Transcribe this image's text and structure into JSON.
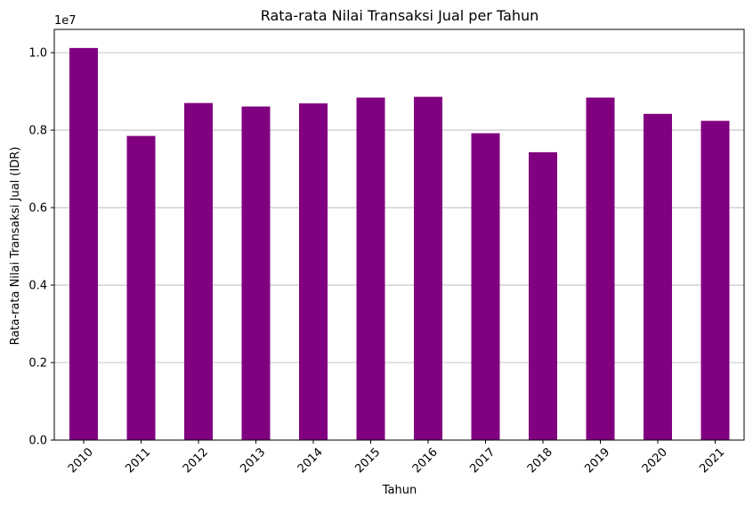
{
  "chart_data": {
    "type": "bar",
    "title": "Rata-rata Nilai Transaksi Jual per Tahun",
    "xlabel": "Tahun",
    "ylabel": "Rata-rata Nilai Transaksi Jual (IDR)",
    "y_offset_label": "1e7",
    "categories": [
      "2010",
      "2011",
      "2012",
      "2013",
      "2014",
      "2015",
      "2016",
      "2017",
      "2018",
      "2019",
      "2020",
      "2021"
    ],
    "values": [
      10120000,
      7850000,
      8700000,
      8610000,
      8690000,
      8840000,
      8860000,
      7920000,
      7430000,
      8840000,
      8420000,
      8240000
    ],
    "ylim": [
      0,
      10600000
    ],
    "yticks": [
      0,
      2000000,
      4000000,
      6000000,
      8000000,
      10000000
    ],
    "ytick_labels": [
      "0.0",
      "0.2",
      "0.4",
      "0.6",
      "0.8",
      "1.0"
    ],
    "grid": "y",
    "bar_color": "#800080"
  }
}
